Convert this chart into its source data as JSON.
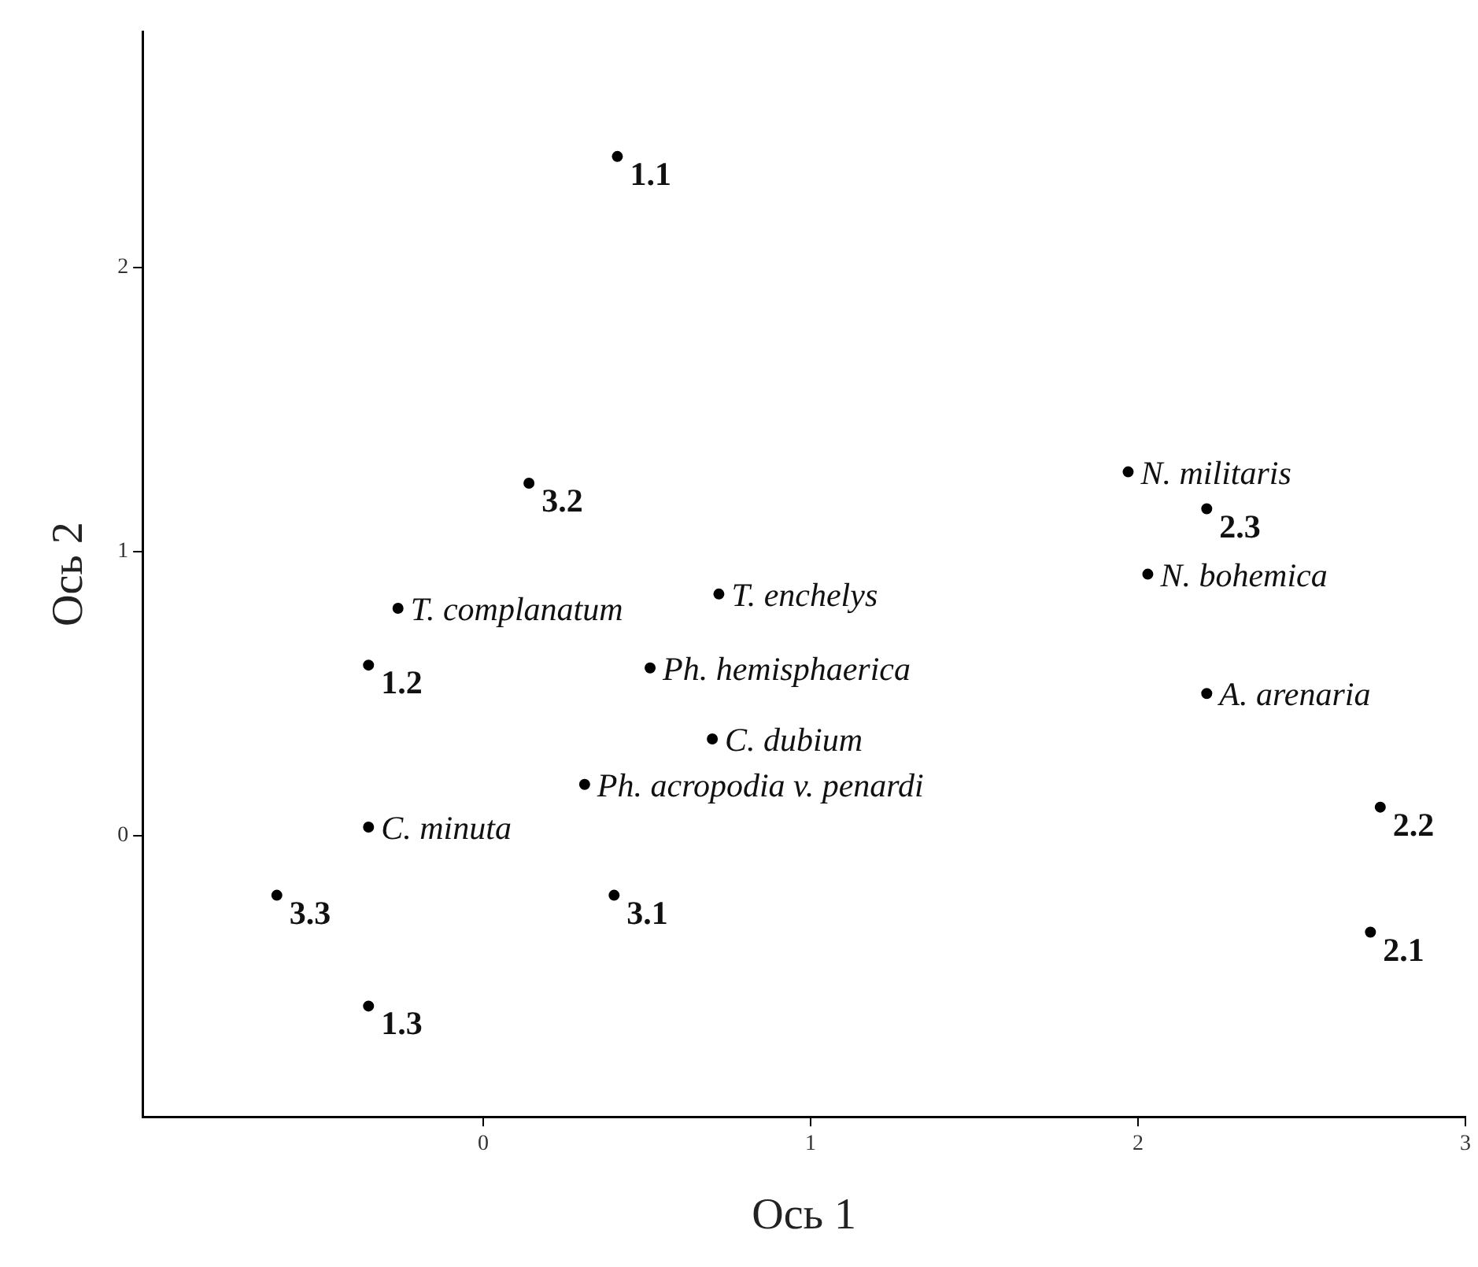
{
  "chart_data": {
    "type": "scatter",
    "xlabel": "Ось 1",
    "ylabel": "Ось 2",
    "xlim": [
      -1.04,
      3.0
    ],
    "ylim": [
      -0.99,
      2.83
    ],
    "xticks": [
      0,
      1,
      2,
      3
    ],
    "yticks": [
      0,
      1,
      2
    ],
    "grid": false,
    "legend": false,
    "marker": "circle",
    "series": [
      {
        "color": "#000000",
        "x": [
          0.41,
          0.14,
          -0.35,
          -0.35,
          -0.63,
          0.4,
          2.21,
          2.74,
          2.71
        ],
        "values": [
          2.39,
          1.24,
          0.6,
          -0.6,
          -0.21,
          -0.21,
          1.15,
          0.1,
          -0.34
        ]
      },
      {
        "color": "#000000",
        "x": [
          -0.26,
          0.72,
          0.51,
          0.7,
          0.31,
          -0.35,
          1.97,
          2.03,
          2.21
        ],
        "values": [
          0.8,
          0.85,
          0.59,
          0.34,
          0.18,
          0.03,
          1.28,
          0.92,
          0.5
        ]
      }
    ],
    "annotations": [
      {
        "text": "1.1",
        "x": 0.41,
        "y": 2.39
      },
      {
        "text": "3.2",
        "x": 0.14,
        "y": 1.24
      },
      {
        "text": "1.2",
        "x": -0.35,
        "y": 0.6
      },
      {
        "text": "1.3",
        "x": -0.35,
        "y": -0.6
      },
      {
        "text": "3.3",
        "x": -0.63,
        "y": -0.21
      },
      {
        "text": "3.1",
        "x": 0.4,
        "y": -0.21
      },
      {
        "text": "2.3",
        "x": 2.21,
        "y": 1.15
      },
      {
        "text": "2.2",
        "x": 2.74,
        "y": 0.1
      },
      {
        "text": "2.1",
        "x": 2.71,
        "y": -0.34
      },
      {
        "text": "T. complanatum",
        "x": -0.26,
        "y": 0.8
      },
      {
        "text": "T. enchelys",
        "x": 0.72,
        "y": 0.85
      },
      {
        "text": "Ph. hemisphaerica",
        "x": 0.51,
        "y": 0.59
      },
      {
        "text": "C. dubium",
        "x": 0.7,
        "y": 0.34
      },
      {
        "text": "Ph. acropodia v. penardi",
        "x": 0.31,
        "y": 0.18
      },
      {
        "text": "C. minuta",
        "x": -0.35,
        "y": 0.03
      },
      {
        "text": "N. militaris",
        "x": 1.97,
        "y": 1.28
      },
      {
        "text": "N. bohemica",
        "x": 2.03,
        "y": 0.92
      },
      {
        "text": "A. arenaria",
        "x": 2.21,
        "y": 0.5
      }
    ]
  }
}
